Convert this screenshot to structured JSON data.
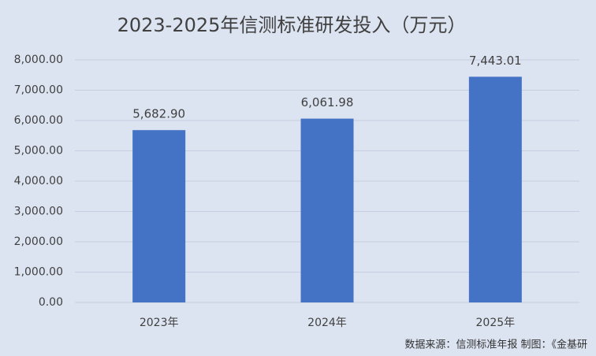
{
  "chart_data": {
    "type": "bar",
    "title": "2023-2025年信测标准研发投入（万元）",
    "categories": [
      "2023年",
      "2024年",
      "2025年"
    ],
    "values": [
      5682.9,
      6061.98,
      7443.01
    ],
    "value_labels": [
      "5,682.90",
      "6,061.98",
      "7,443.01"
    ],
    "color": "#4472c4",
    "ylim": [
      0,
      8000
    ],
    "yticks": [
      {
        "value": 0,
        "label": "0.00"
      },
      {
        "value": 1000,
        "label": "1,000.00"
      },
      {
        "value": 2000,
        "label": "2,000.00"
      },
      {
        "value": 3000,
        "label": "3,000.00"
      },
      {
        "value": 4000,
        "label": "4,000.00"
      },
      {
        "value": 5000,
        "label": "5,000.00"
      },
      {
        "value": 6000,
        "label": "6,000.00"
      },
      {
        "value": 7000,
        "label": "7,000.00"
      },
      {
        "value": 8000,
        "label": "8,000.00"
      }
    ],
    "grid": true,
    "source": "数据来源：信测标准年报  制图：《金基研"
  }
}
